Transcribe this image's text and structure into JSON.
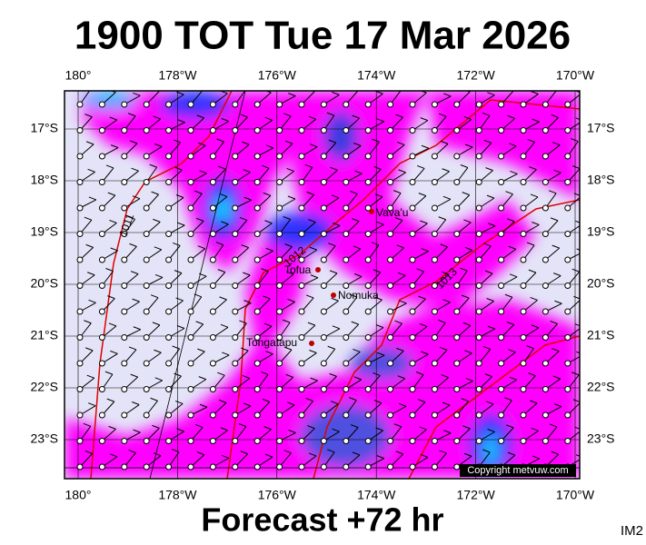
{
  "header": {
    "title": "1900 TOT Tue 17 Mar 2026"
  },
  "map": {
    "lon_labels": [
      "180°",
      "178°W",
      "176°W",
      "174°W",
      "172°W",
      "170°W"
    ],
    "lat_labels": [
      "17°S",
      "18°S",
      "19°S",
      "20°S",
      "21°S",
      "22°S",
      "23°S"
    ],
    "places": [
      "Vava'u",
      "Tofua",
      "Nomuka",
      "Tongatapu"
    ],
    "isobars": [
      "1011",
      "1012",
      "1013"
    ],
    "copyright": "Copyright metvuw.com"
  },
  "footer": {
    "caption": "Forecast +72 hr",
    "code": "IM2"
  }
}
